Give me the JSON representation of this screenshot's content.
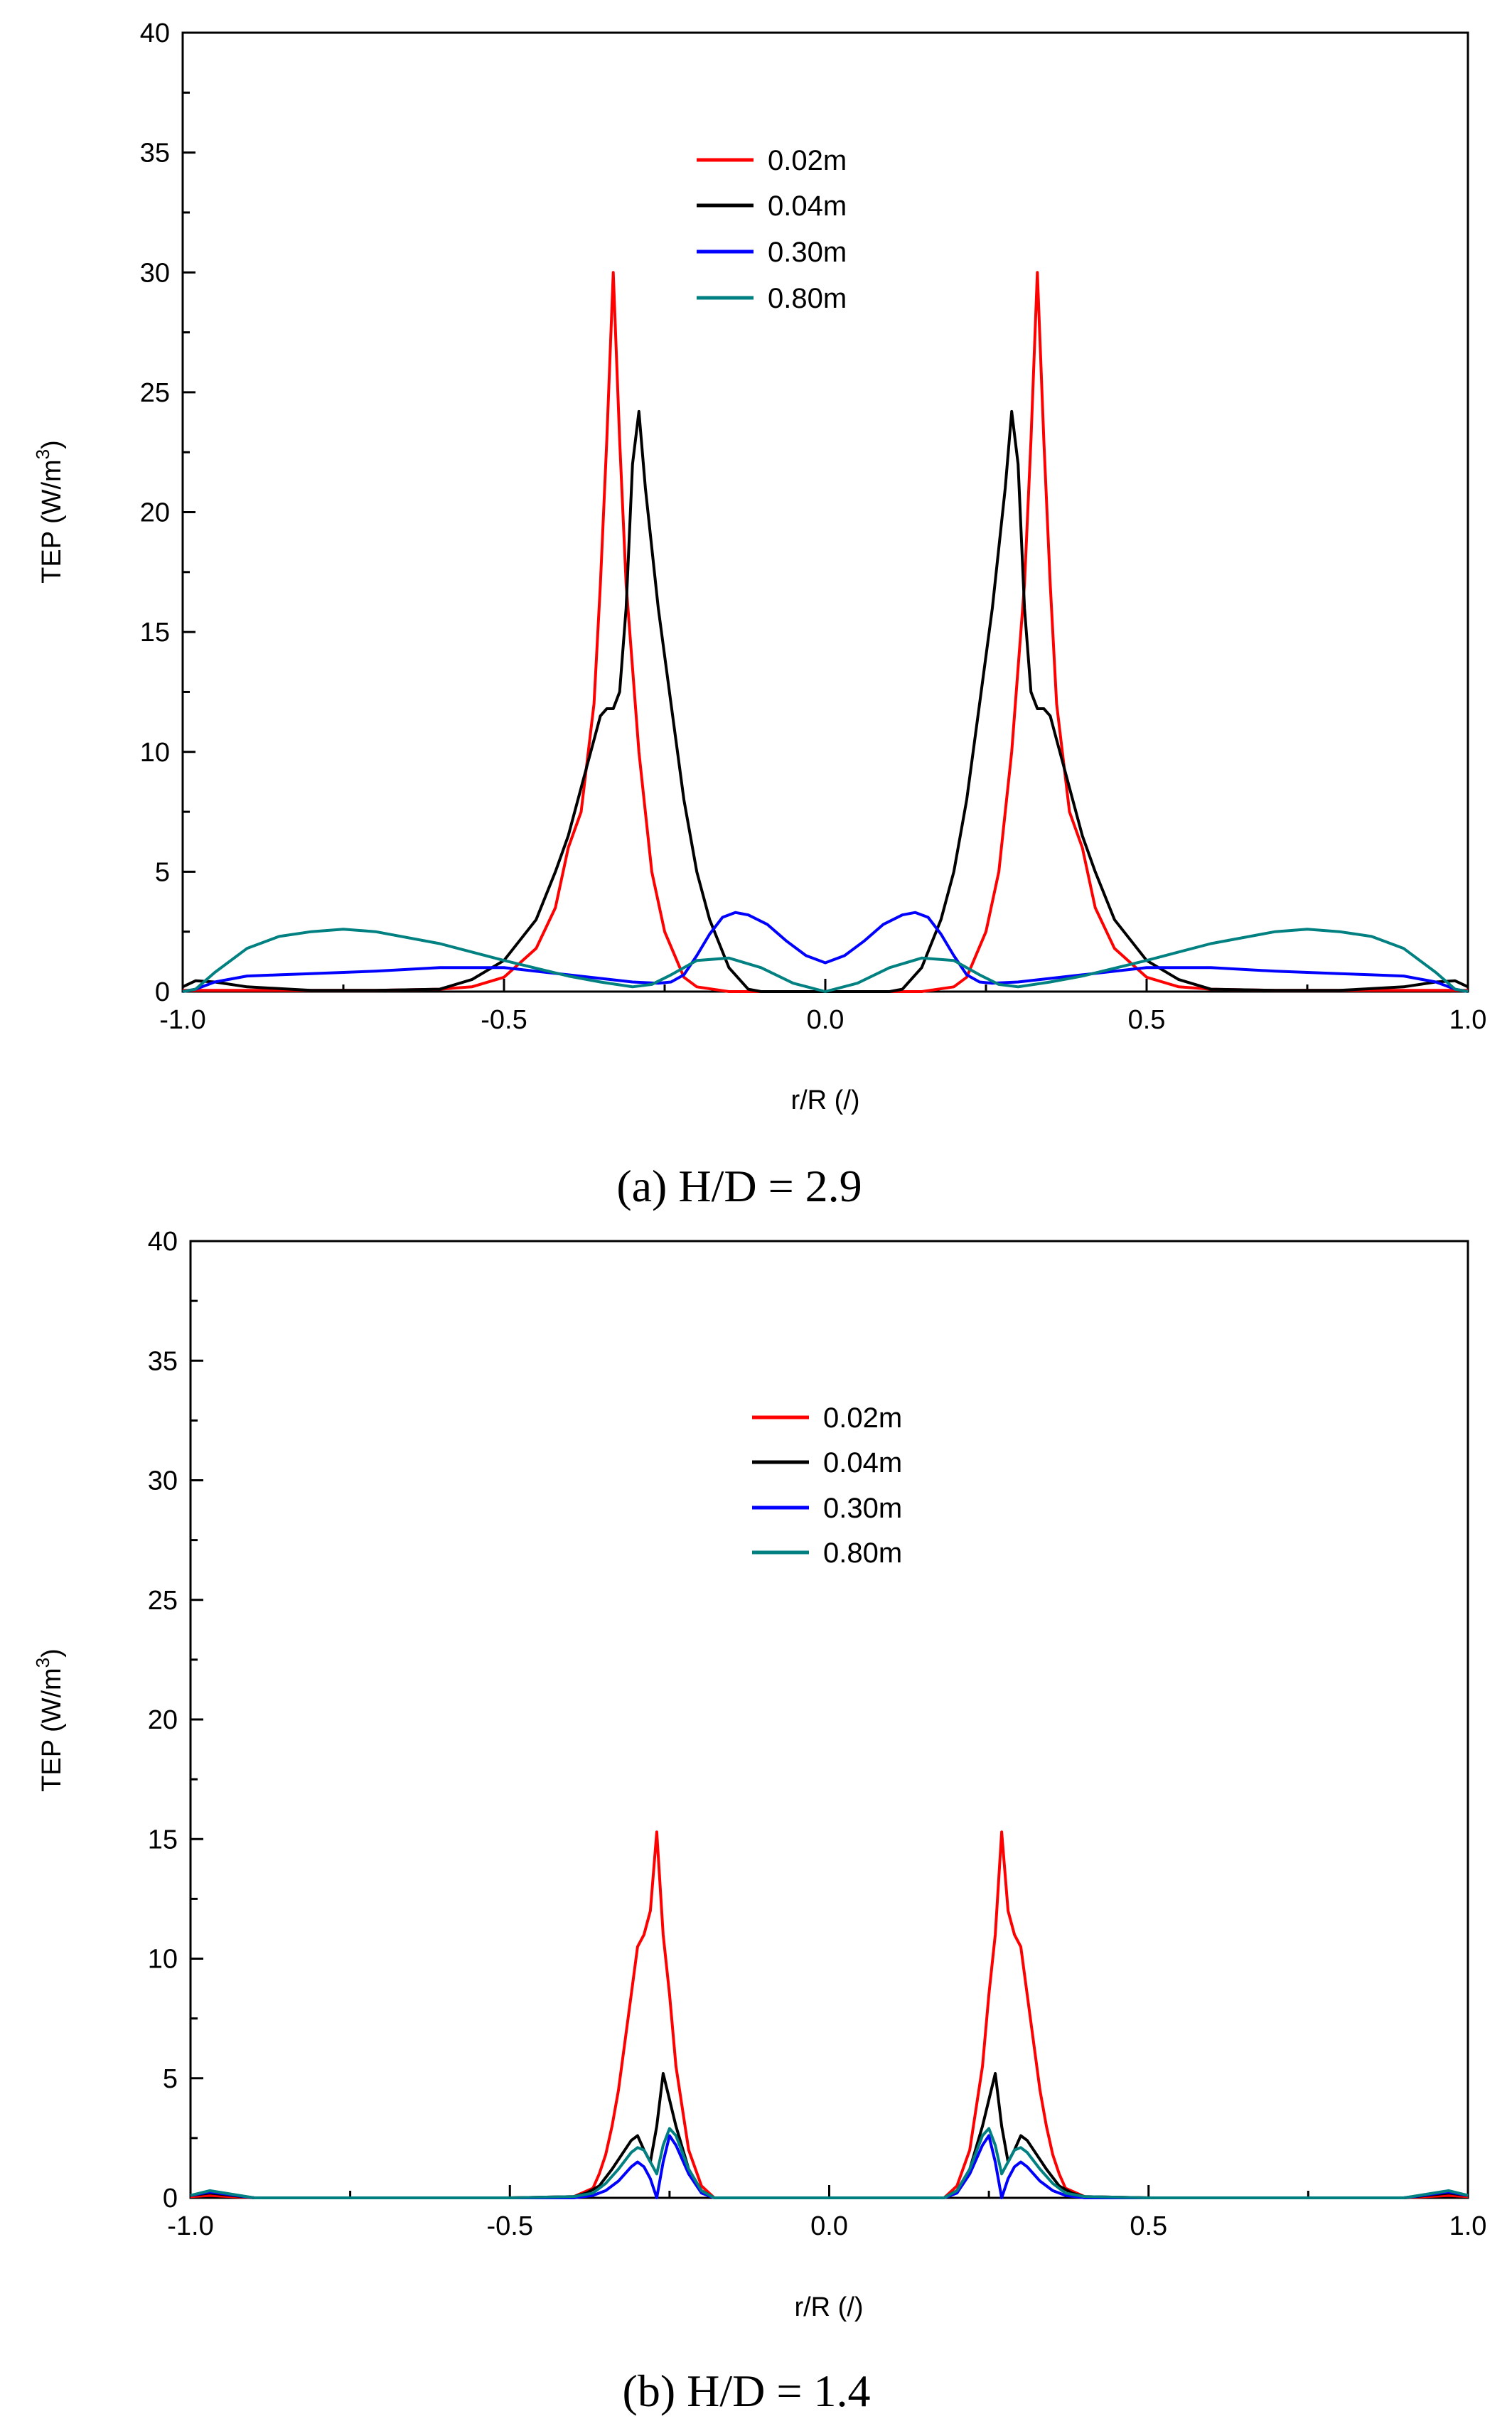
{
  "chart_data": [
    {
      "type": "line",
      "caption": "(a) H/D = 2.9",
      "xlabel": "r/R (/)",
      "ylabel_main": "TEP (W/m",
      "ylabel_sup": "3",
      "ylabel_end": ")",
      "xlim": [
        -1.0,
        1.0
      ],
      "ylim": [
        0,
        40
      ],
      "xticks": [
        -1.0,
        -0.5,
        0.0,
        0.5,
        1.0
      ],
      "xtick_labels": [
        "-1.0",
        "-0.5",
        "0.0",
        "0.5",
        "1.0"
      ],
      "yticks": [
        0,
        5,
        10,
        15,
        20,
        25,
        30,
        35,
        40
      ],
      "ytick_labels": [
        "0",
        "5",
        "10",
        "15",
        "20",
        "25",
        "30",
        "35",
        "40"
      ],
      "legend_position": "upper-center",
      "series": [
        {
          "name": "0.02m",
          "color": "#ff0000",
          "x": [
            0,
            0.1,
            0.15,
            0.2,
            0.22,
            0.25,
            0.27,
            0.29,
            0.31,
            0.32,
            0.33,
            0.34,
            0.35,
            0.36,
            0.38,
            0.4,
            0.42,
            0.45,
            0.5,
            0.55,
            0.6,
            0.7,
            0.8,
            0.9,
            0.95,
            1.0
          ],
          "y": [
            0,
            0,
            0,
            0.2,
            0.6,
            2.5,
            5.0,
            10.0,
            17.0,
            23.0,
            30.0,
            23.0,
            17.0,
            12.0,
            7.5,
            6.0,
            3.5,
            1.8,
            0.6,
            0.2,
            0.1,
            0.05,
            0.05,
            0.05,
            0.05,
            0.05
          ]
        },
        {
          "name": "0.04m",
          "color": "#000000",
          "x": [
            0,
            0.1,
            0.12,
            0.15,
            0.18,
            0.2,
            0.22,
            0.24,
            0.26,
            0.28,
            0.29,
            0.3,
            0.31,
            0.32,
            0.33,
            0.34,
            0.35,
            0.36,
            0.37,
            0.38,
            0.4,
            0.42,
            0.45,
            0.5,
            0.55,
            0.6,
            0.7,
            0.8,
            0.9,
            0.95,
            0.98,
            1.0
          ],
          "y": [
            0,
            0,
            0.1,
            1.0,
            3.0,
            5.0,
            8.0,
            12.0,
            16.0,
            21.0,
            24.2,
            22.0,
            16.0,
            12.5,
            11.8,
            11.8,
            11.5,
            10.5,
            9.5,
            8.5,
            6.5,
            5.0,
            3.0,
            1.3,
            0.5,
            0.1,
            0.05,
            0.05,
            0.2,
            0.4,
            0.45,
            0.2
          ]
        },
        {
          "name": "0.30m",
          "color": "#0000ff",
          "x": [
            0,
            0.03,
            0.06,
            0.09,
            0.12,
            0.14,
            0.16,
            0.18,
            0.2,
            0.22,
            0.24,
            0.26,
            0.3,
            0.4,
            0.5,
            0.6,
            0.7,
            0.8,
            0.85,
            0.9,
            0.95,
            0.98,
            1.0
          ],
          "y": [
            1.2,
            1.5,
            2.1,
            2.8,
            3.2,
            3.3,
            3.1,
            2.4,
            1.5,
            0.7,
            0.4,
            0.35,
            0.4,
            0.7,
            1.0,
            1.0,
            0.85,
            0.75,
            0.7,
            0.65,
            0.4,
            0.1,
            0.0
          ]
        },
        {
          "name": "0.80m",
          "color": "#008080",
          "x": [
            0,
            0.05,
            0.1,
            0.15,
            0.2,
            0.24,
            0.27,
            0.3,
            0.35,
            0.4,
            0.5,
            0.6,
            0.7,
            0.75,
            0.8,
            0.85,
            0.9,
            0.95,
            0.98,
            1.0
          ],
          "y": [
            0,
            0.35,
            1.0,
            1.4,
            1.3,
            0.7,
            0.3,
            0.2,
            0.4,
            0.65,
            1.3,
            2.0,
            2.5,
            2.6,
            2.5,
            2.3,
            1.8,
            0.8,
            0.1,
            0.0
          ]
        }
      ]
    },
    {
      "type": "line",
      "caption": "(b) H/D = 1.4",
      "xlabel": "r/R (/)",
      "ylabel_main": "TEP (W/m",
      "ylabel_sup": "3",
      "ylabel_end": ")",
      "xlim": [
        -1.0,
        1.0
      ],
      "ylim": [
        0,
        40
      ],
      "xticks": [
        -1.0,
        -0.5,
        0.0,
        0.5,
        1.0
      ],
      "xtick_labels": [
        "-1.0",
        "-0.5",
        "0.0",
        "0.5",
        "1.0"
      ],
      "yticks": [
        0,
        5,
        10,
        15,
        20,
        25,
        30,
        35,
        40
      ],
      "ytick_labels": [
        "0",
        "5",
        "10",
        "15",
        "20",
        "25",
        "30",
        "35",
        "40"
      ],
      "legend_position": "upper-center",
      "series": [
        {
          "name": "0.02m",
          "color": "#ff0000",
          "x": [
            0,
            0.18,
            0.2,
            0.22,
            0.24,
            0.25,
            0.26,
            0.27,
            0.28,
            0.29,
            0.3,
            0.31,
            0.32,
            0.33,
            0.34,
            0.35,
            0.36,
            0.37,
            0.4,
            0.5,
            0.7,
            0.9,
            0.97,
            1.0
          ],
          "y": [
            0,
            0,
            0.5,
            2.0,
            5.5,
            8.5,
            11.0,
            15.3,
            12.0,
            11.0,
            10.5,
            8.5,
            6.5,
            4.5,
            3.0,
            1.8,
            1.0,
            0.4,
            0.05,
            0,
            0,
            0,
            0.1,
            0.05
          ]
        },
        {
          "name": "0.04m",
          "color": "#000000",
          "x": [
            0,
            0.18,
            0.2,
            0.22,
            0.24,
            0.26,
            0.27,
            0.28,
            0.29,
            0.3,
            0.31,
            0.32,
            0.34,
            0.36,
            0.38,
            0.4,
            0.5,
            0.9,
            0.97,
            1.0
          ],
          "y": [
            0,
            0,
            0.3,
            1.2,
            3.0,
            5.2,
            3.0,
            1.5,
            2.0,
            2.6,
            2.4,
            2.0,
            1.2,
            0.5,
            0.2,
            0.05,
            0,
            0,
            0.2,
            0.1
          ]
        },
        {
          "name": "0.30m",
          "color": "#0000ff",
          "x": [
            0,
            0.18,
            0.2,
            0.22,
            0.24,
            0.25,
            0.26,
            0.27,
            0.28,
            0.29,
            0.3,
            0.31,
            0.33,
            0.35,
            0.37,
            0.4,
            0.5,
            0.9,
            0.97,
            1.0
          ],
          "y": [
            0,
            0,
            0.2,
            1.0,
            2.2,
            2.6,
            1.5,
            0.0,
            0.8,
            1.3,
            1.5,
            1.3,
            0.7,
            0.3,
            0.1,
            0.0,
            0,
            0,
            0.25,
            0.1
          ]
        },
        {
          "name": "0.80m",
          "color": "#008080",
          "x": [
            0,
            0.18,
            0.2,
            0.22,
            0.24,
            0.25,
            0.26,
            0.27,
            0.28,
            0.29,
            0.3,
            0.31,
            0.33,
            0.35,
            0.37,
            0.4,
            0.5,
            0.9,
            0.97,
            1.0
          ],
          "y": [
            0,
            0,
            0.3,
            1.2,
            2.6,
            2.9,
            2.2,
            1.0,
            1.5,
            2.0,
            2.1,
            1.9,
            1.2,
            0.6,
            0.2,
            0.05,
            0,
            0,
            0.3,
            0.1
          ]
        }
      ]
    }
  ]
}
